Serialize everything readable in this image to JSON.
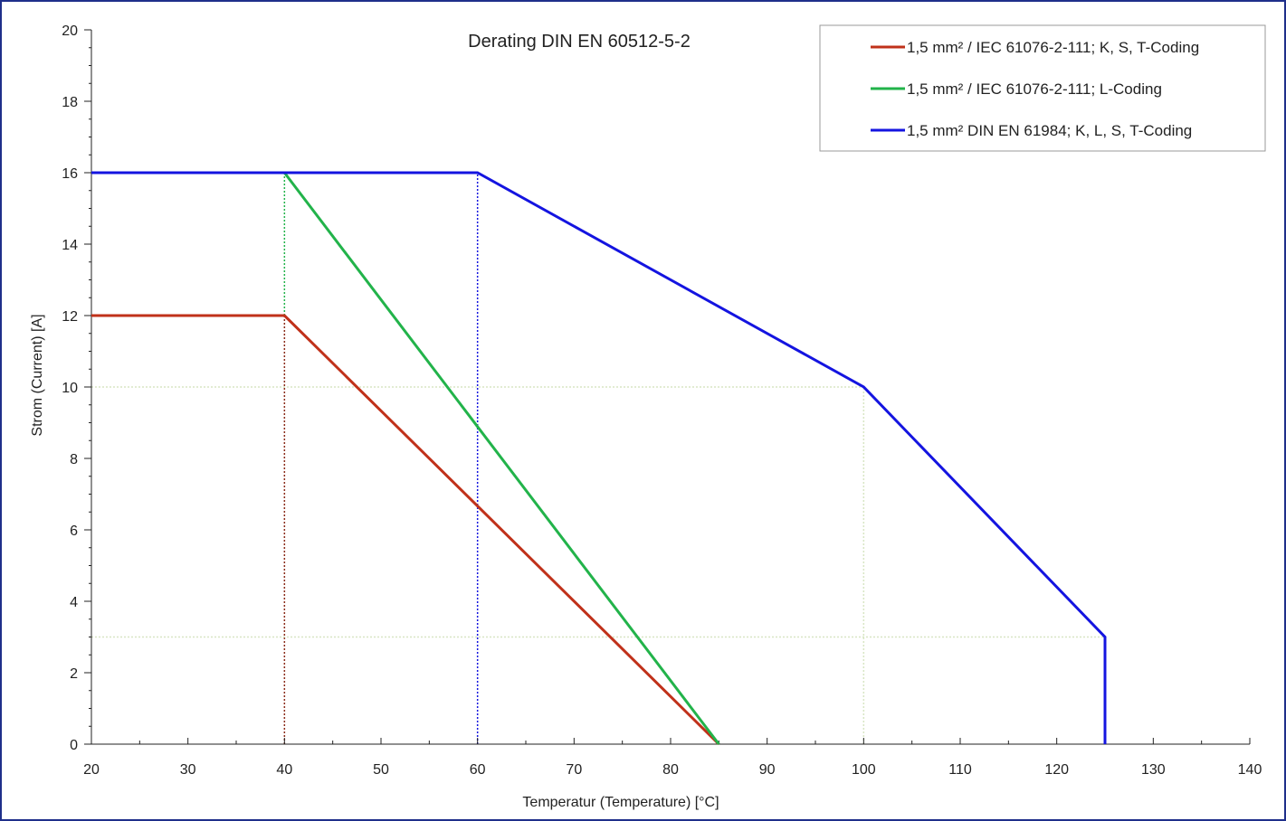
{
  "chart_data": {
    "type": "line",
    "title": "Derating DIN EN 60512-5-2",
    "xlabel": "Temperatur (Temperature) [°C]",
    "ylabel": "Strom (Current) [A]",
    "xlim": [
      20,
      140
    ],
    "ylim": [
      0,
      20
    ],
    "xticks": [
      20,
      30,
      40,
      50,
      60,
      70,
      80,
      90,
      100,
      110,
      120,
      130,
      140
    ],
    "yticks": [
      0,
      2,
      4,
      6,
      8,
      10,
      12,
      14,
      16,
      18,
      20
    ],
    "legend_position": "top-right",
    "grid": false,
    "series": [
      {
        "name": "1,5 mm² / IEC 61076-2-111; K, S, T-Coding",
        "color": "#c0311a",
        "points": [
          [
            20,
            12
          ],
          [
            40,
            12
          ],
          [
            85,
            0
          ]
        ]
      },
      {
        "name": "1,5 mm² / IEC 61076-2-111; L-Coding",
        "color": "#22b34a",
        "points": [
          [
            40,
            16
          ],
          [
            85,
            0
          ]
        ]
      },
      {
        "name": "1,5 mm² DIN EN 61984; K, L, S, T-Coding",
        "color": "#1414e0",
        "points": [
          [
            20,
            16
          ],
          [
            60,
            16
          ],
          [
            100,
            10
          ],
          [
            125,
            3
          ],
          [
            125,
            0
          ]
        ]
      }
    ],
    "reference_lines": [
      {
        "orientation": "vertical",
        "x": 40,
        "y_to": 12,
        "color": "#8b2b1a"
      },
      {
        "orientation": "vertical",
        "x": 40,
        "y_from": 12,
        "y_to": 16,
        "color": "#22b34a"
      },
      {
        "orientation": "vertical",
        "x": 60,
        "y_to": 16,
        "color": "#1414e0"
      },
      {
        "orientation": "vertical",
        "x": 100,
        "y_to": 10,
        "color": "#d8e6c4"
      },
      {
        "orientation": "horizontal",
        "y": 10,
        "x_to": 100,
        "color": "#d8e6c4"
      },
      {
        "orientation": "horizontal",
        "y": 3,
        "x_to": 125,
        "color": "#d8e6c4"
      }
    ],
    "frame_color": "#1f2f8a"
  }
}
